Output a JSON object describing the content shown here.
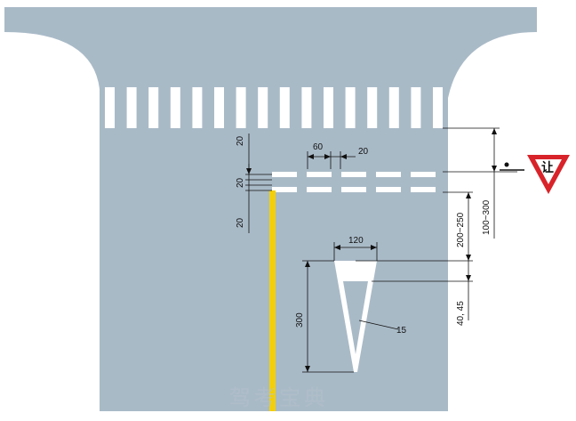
{
  "colors": {
    "road": "#a9bac7",
    "marking": "#ffffff",
    "center_line": "#f2cf0a",
    "sign_red": "#d8232a",
    "dim_line": "#111111"
  },
  "crosswalk": {
    "stripe_count": 16
  },
  "yield_line": {
    "dash_count": 5
  },
  "dimensions": {
    "dash_length": "60",
    "dash_gap": "20",
    "line_top_gap": "20",
    "line_between": "20",
    "line_bottom_gap": "20",
    "crosswalk_to_yield": "100~300",
    "yield_to_triangle": "200~250",
    "triangle_width": "120",
    "triangle_length": "300",
    "triangle_inner_offset": "40, 45",
    "triangle_stroke": "15"
  },
  "sign": {
    "text": "让"
  },
  "watermark": "驾考宝典"
}
